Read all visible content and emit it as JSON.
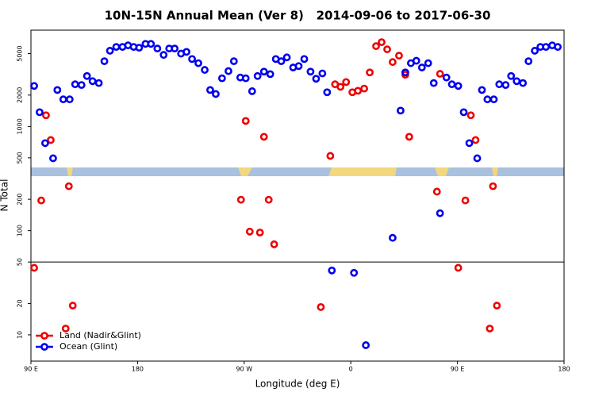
{
  "chart_data": {
    "type": "scatter",
    "title": "10N-15N Annual Mean (Ver 8)   2014-09-06 to 2017-06-30",
    "xlabel": "Longitude (deg E)",
    "ylabel": "N Total",
    "xlim": [
      90,
      540
    ],
    "xticks": [
      {
        "value": 90,
        "label": "90 E"
      },
      180,
      {
        "value": 270,
        "label": "90 W"
      },
      {
        "value": 360,
        "label": "0"
      },
      {
        "value": 450,
        "label": "90 E"
      },
      {
        "value": 540,
        "label": "180"
      }
    ],
    "ylim": [
      5.6,
      8400
    ],
    "log_y": true,
    "yticks": [
      10,
      20,
      50,
      100,
      200,
      500,
      1000,
      2000,
      5000
    ],
    "hline": 50,
    "legend": "bottom-left",
    "series": [
      {
        "name": "Land (Nadir&Glint)",
        "color": "#ee0000",
        "x": [
          92.7,
          98.7,
          102.7,
          106.7,
          119.3,
          122,
          125.3,
          267.3,
          271.3,
          274.7,
          283.3,
          286.7,
          290.7,
          295.3,
          334.7,
          342.7,
          346.7,
          351.3,
          356,
          361.3,
          366,
          371.3,
          376,
          381.3,
          386,
          390.7,
          395.3,
          400.7,
          406,
          409.3,
          432.7,
          435.3,
          450.7,
          456.7,
          461.3,
          465.3,
          477.3,
          480,
          483.3
        ],
        "values": [
          44,
          195,
          1280,
          741,
          11.5,
          267,
          19.1,
          198,
          1130,
          98,
          96,
          796,
          198,
          74,
          18.5,
          522,
          2540,
          2400,
          2670,
          2130,
          2200,
          2310,
          3300,
          5900,
          6440,
          5500,
          4150,
          4780,
          3140,
          796,
          237,
          3200,
          44,
          195,
          1280,
          741,
          11.5,
          267,
          19.1
        ]
      },
      {
        "name": "Ocean (Glint)",
        "color": "#0000ee",
        "x": [
          92.7,
          97.3,
          102,
          108.7,
          112.3,
          117.3,
          122.7,
          127.3,
          132.7,
          137.3,
          142,
          147.3,
          152,
          156.7,
          162,
          167.3,
          172,
          176.7,
          181.3,
          186.7,
          191.3,
          196.7,
          202,
          206.7,
          211.3,
          216.7,
          221.3,
          226,
          231.3,
          236.7,
          241.3,
          246,
          251.3,
          256.7,
          261.3,
          266.7,
          271.3,
          276.7,
          281.3,
          286.7,
          292,
          296.7,
          301.3,
          306,
          311.3,
          316,
          320.7,
          326,
          330.7,
          336,
          340,
          344,
          362.7,
          372.7,
          395.3,
          402,
          406,
          410.7,
          415.3,
          420,
          425.3,
          430,
          435.3,
          440.7,
          445.3,
          450.7,
          455.3,
          460,
          466.7,
          470.7,
          475.3,
          480.7,
          485.3,
          490.7,
          495.3,
          500,
          505.3,
          510,
          515.3,
          520,
          524.7,
          530,
          534.7
        ],
        "values": [
          2450,
          1370,
          692,
          495,
          2240,
          1820,
          1820,
          2540,
          2500,
          3050,
          2720,
          2610,
          4230,
          5330,
          5800,
          5800,
          6000,
          5800,
          5700,
          6200,
          6200,
          5600,
          4860,
          5600,
          5600,
          5000,
          5200,
          4440,
          4050,
          3490,
          2240,
          2050,
          2900,
          3400,
          4230,
          2950,
          2900,
          2180,
          3050,
          3360,
          3180,
          4440,
          4230,
          4600,
          3680,
          3800,
          4440,
          3360,
          2870,
          3230,
          2130,
          41.5,
          39.4,
          7.96,
          85.3,
          1420,
          3300,
          4050,
          4270,
          3680,
          4050,
          2610,
          147,
          2950,
          2540,
          2450,
          1370,
          692,
          495,
          2240,
          1820,
          1820,
          2540,
          2500,
          3050,
          2720,
          2610,
          4230,
          5330,
          5800,
          5800,
          6000,
          5800
        ]
      }
    ]
  }
}
